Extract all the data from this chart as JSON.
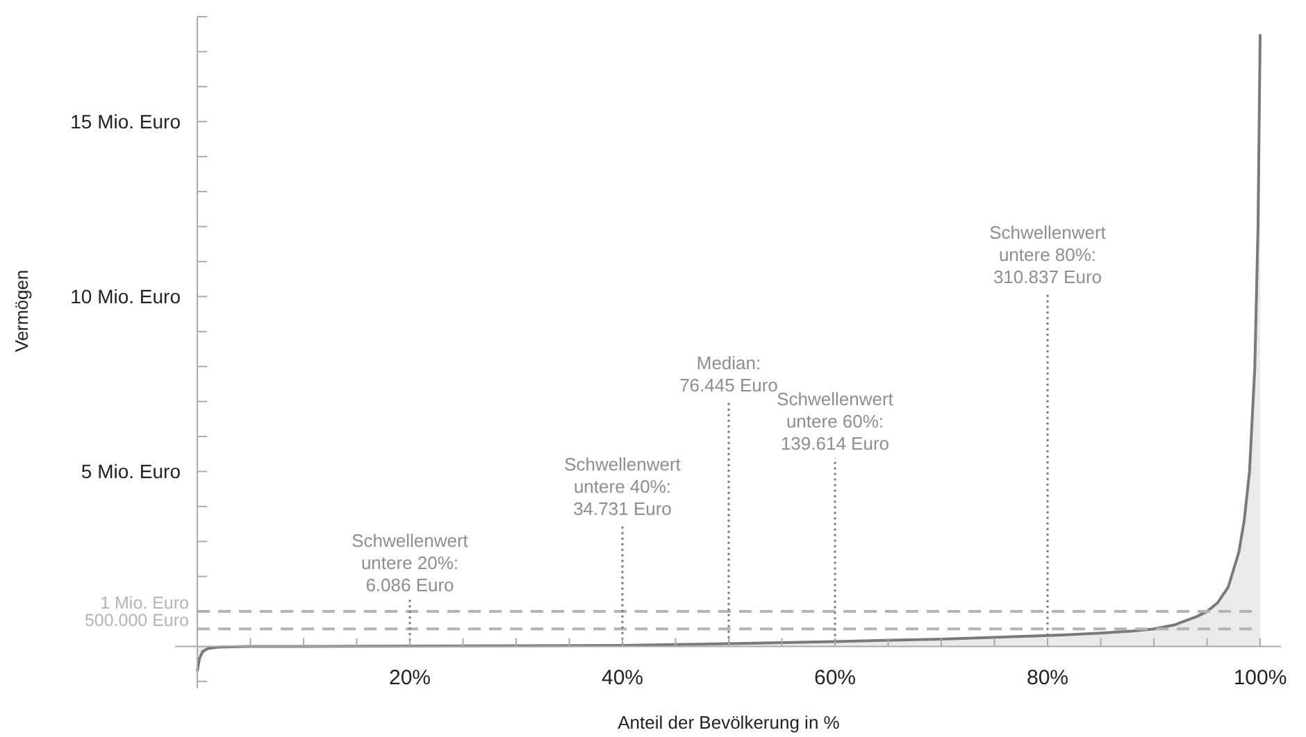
{
  "chart_data": {
    "type": "area",
    "xlabel": "Anteil der Bevölkerung in %",
    "ylabel": "Vermögen",
    "xlim": [
      0,
      100
    ],
    "ylim": [
      -1.2,
      18
    ],
    "xticks": [
      {
        "value": 5,
        "label": null
      },
      {
        "value": 10,
        "label": null
      },
      {
        "value": 15,
        "label": null
      },
      {
        "value": 20,
        "label": "20%"
      },
      {
        "value": 25,
        "label": null
      },
      {
        "value": 30,
        "label": null
      },
      {
        "value": 35,
        "label": null
      },
      {
        "value": 40,
        "label": "40%"
      },
      {
        "value": 45,
        "label": null
      },
      {
        "value": 50,
        "label": null
      },
      {
        "value": 55,
        "label": null
      },
      {
        "value": 60,
        "label": "60%"
      },
      {
        "value": 65,
        "label": null
      },
      {
        "value": 70,
        "label": null
      },
      {
        "value": 75,
        "label": null
      },
      {
        "value": 80,
        "label": "80%"
      },
      {
        "value": 85,
        "label": null
      },
      {
        "value": 90,
        "label": null
      },
      {
        "value": 95,
        "label": null
      },
      {
        "value": 100,
        "label": "100%"
      }
    ],
    "yticks": [
      {
        "value": -1,
        "label": null
      },
      {
        "value": 1,
        "label": null
      },
      {
        "value": 2,
        "label": null
      },
      {
        "value": 3,
        "label": null
      },
      {
        "value": 4,
        "label": null
      },
      {
        "value": 5,
        "label": "5 Mio. Euro"
      },
      {
        "value": 6,
        "label": null
      },
      {
        "value": 7,
        "label": null
      },
      {
        "value": 8,
        "label": null
      },
      {
        "value": 9,
        "label": null
      },
      {
        "value": 10,
        "label": "10 Mio. Euro"
      },
      {
        "value": 11,
        "label": null
      },
      {
        "value": 12,
        "label": null
      },
      {
        "value": 13,
        "label": null
      },
      {
        "value": 14,
        "label": null
      },
      {
        "value": 15,
        "label": "15 Mio. Euro"
      },
      {
        "value": 16,
        "label": null
      },
      {
        "value": 17,
        "label": null
      },
      {
        "value": 18,
        "label": null
      }
    ],
    "series": [
      {
        "color": "#7a7a7a",
        "x": [
          0,
          0.2,
          0.5,
          1,
          2,
          5,
          10,
          20,
          30,
          40,
          50,
          60,
          70,
          80,
          85,
          88,
          90,
          92,
          94,
          95,
          96,
          97,
          98,
          98.5,
          99,
          99.5,
          99.8,
          100
        ],
        "values": [
          -0.7,
          -0.35,
          -0.15,
          -0.06,
          -0.02,
          0,
          0,
          0.01,
          0.02,
          0.03,
          0.08,
          0.14,
          0.21,
          0.31,
          0.38,
          0.44,
          0.5,
          0.62,
          0.85,
          1,
          1.25,
          1.7,
          2.7,
          3.6,
          5,
          8,
          12,
          17.5
        ]
      }
    ],
    "ref_lines": [
      {
        "axis": "y",
        "value": 1,
        "label": "1 Mio. Euro",
        "color": "#b4b4b8",
        "line_style": "dashed"
      },
      {
        "axis": "y",
        "value": 0.5,
        "label": "500.000 Euro",
        "color": "#b4b4b8",
        "line_style": "dashed"
      }
    ],
    "annotations": [
      {
        "text": "Schwellenwert\nuntere 20%:\n6.086 Euro",
        "x": 20,
        "y": 0.006086
      },
      {
        "text": "Schwellenwert\nuntere 40%:\n34.731 Euro",
        "x": 40,
        "y": 0.034731
      },
      {
        "text": "Median:\n76.445 Euro",
        "x": 50,
        "y": 0.076445
      },
      {
        "text": "Schwellenwert\nuntere 60%:\n139.614 Euro",
        "x": 60,
        "y": 0.139614
      },
      {
        "text": "Schwellenwert\nuntere 80%:\n310.837 Euro",
        "x": 80,
        "y": 0.310837
      }
    ],
    "grid": false
  }
}
